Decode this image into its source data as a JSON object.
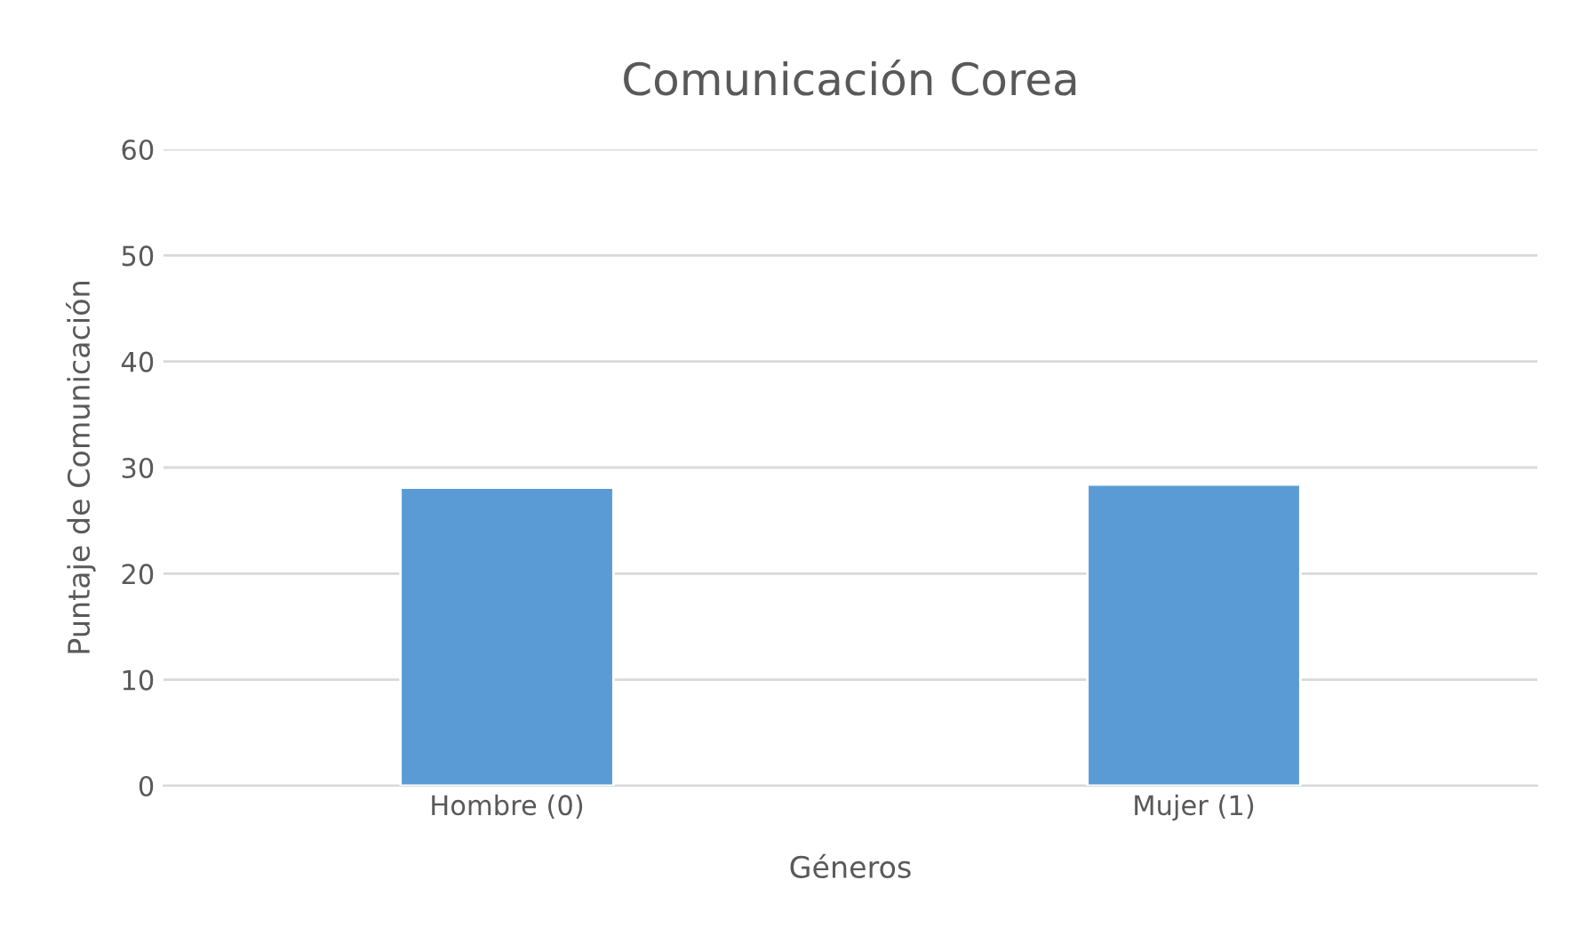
{
  "chart_data": {
    "type": "bar",
    "title": "Comunicación Corea",
    "xlabel": "Géneros",
    "ylabel": "Puntaje de Comunicación",
    "categories": [
      "Hombre (0)",
      "Mujer (1)"
    ],
    "values": [
      28.1,
      28.4
    ],
    "color": "#5b9bd5",
    "ylim": [
      0,
      60
    ],
    "yticks": [
      0,
      10,
      20,
      30,
      40,
      50,
      60
    ],
    "grid": "y"
  }
}
